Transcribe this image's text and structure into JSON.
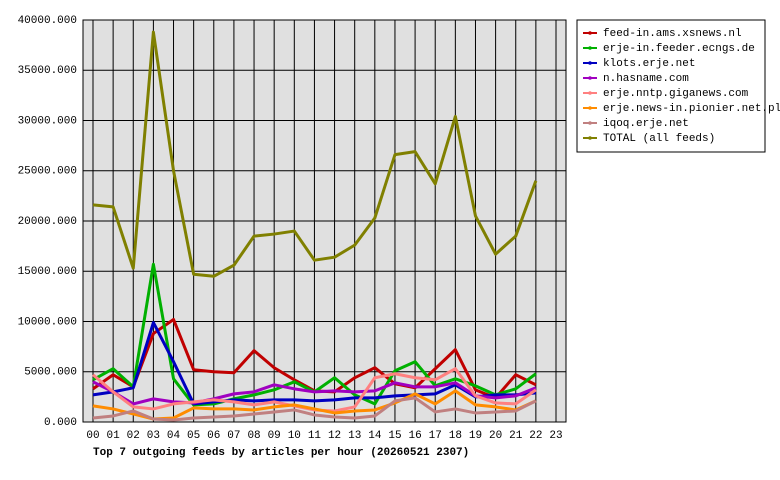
{
  "chart_data": {
    "type": "line",
    "title": "Top 7 outgoing feeds by articles per hour (20260521 2307)",
    "categories": [
      "00",
      "01",
      "02",
      "03",
      "04",
      "05",
      "06",
      "07",
      "08",
      "09",
      "10",
      "11",
      "12",
      "13",
      "14",
      "15",
      "16",
      "17",
      "18",
      "19",
      "20",
      "21",
      "22",
      "23"
    ],
    "ylim": [
      0,
      40000
    ],
    "yticks": [
      {
        "value": 0,
        "label": "0.000"
      },
      {
        "value": 5000,
        "label": "5000.000"
      },
      {
        "value": 10000,
        "label": "10000.000"
      },
      {
        "value": 15000,
        "label": "15000.000"
      },
      {
        "value": 20000,
        "label": "20000.000"
      },
      {
        "value": 25000,
        "label": "25000.000"
      },
      {
        "value": 30000,
        "label": "30000.000"
      },
      {
        "value": 35000,
        "label": "35000.000"
      },
      {
        "value": 40000,
        "label": "40000.000"
      }
    ],
    "grid": true,
    "legend": "right",
    "series": [
      {
        "name": "feed-in.ams.xsnews.nl",
        "color": "#c00000",
        "values": [
          3300,
          4700,
          3500,
          8800,
          10200,
          5200,
          5000,
          4900,
          7100,
          5400,
          4200,
          3100,
          3000,
          4400,
          5400,
          3800,
          3400,
          5300,
          7200,
          3200,
          2400,
          4700,
          3700,
          null
        ]
      },
      {
        "name": "erje-in.feeder.ecngs.de",
        "color": "#00b000",
        "values": [
          4200,
          5300,
          3500,
          15700,
          4300,
          1700,
          1800,
          2300,
          2700,
          3200,
          4000,
          3000,
          4400,
          2700,
          1800,
          5100,
          6000,
          3600,
          4300,
          3600,
          2700,
          3300,
          4800,
          null
        ]
      },
      {
        "name": "klots.erje.net",
        "color": "#0000c0",
        "values": [
          2700,
          3000,
          3400,
          9900,
          6000,
          1800,
          2000,
          2200,
          2100,
          2200,
          2200,
          2100,
          2200,
          2400,
          2400,
          2600,
          2700,
          2800,
          3700,
          2500,
          2700,
          2700,
          2900,
          null
        ]
      },
      {
        "name": "n.hasname.com",
        "color": "#a000c0",
        "values": [
          4000,
          3000,
          1800,
          2300,
          2000,
          1900,
          2300,
          2800,
          3000,
          3700,
          3300,
          3000,
          3100,
          3000,
          3100,
          3900,
          3500,
          3500,
          3900,
          2600,
          2400,
          2600,
          3400,
          null
        ]
      },
      {
        "name": "erje.nntp.giganews.com",
        "color": "#ff8080",
        "values": [
          4700,
          3000,
          1500,
          1300,
          1800,
          2000,
          2200,
          2000,
          1700,
          2000,
          1600,
          1200,
          1100,
          1500,
          4400,
          4800,
          4400,
          4200,
          5300,
          2600,
          1900,
          1800,
          3200,
          null
        ]
      },
      {
        "name": "erje.news-in.pionier.net.pl",
        "color": "#ff8c00",
        "values": [
          1600,
          1300,
          800,
          300,
          400,
          1400,
          1300,
          1300,
          1200,
          1500,
          1700,
          1300,
          900,
          1100,
          1200,
          1900,
          2800,
          1800,
          3100,
          1700,
          1500,
          1200,
          2100,
          null
        ]
      },
      {
        "name": "iqoq.erje.net",
        "color": "#c08080",
        "values": [
          400,
          600,
          1100,
          300,
          200,
          400,
          500,
          600,
          800,
          1000,
          1200,
          700,
          500,
          400,
          600,
          2100,
          2400,
          1000,
          1300,
          900,
          1000,
          1100,
          2100,
          null
        ]
      },
      {
        "name": "TOTAL (all feeds)",
        "color": "#808000",
        "values": [
          21600,
          21400,
          15300,
          38800,
          25000,
          14700,
          14500,
          15600,
          18500,
          18700,
          19000,
          16100,
          16400,
          17600,
          20300,
          26600,
          26900,
          23700,
          30400,
          20500,
          16700,
          18500,
          24000,
          null
        ]
      }
    ]
  }
}
